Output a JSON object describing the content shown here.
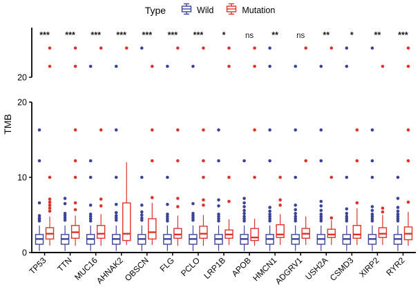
{
  "chart_data": {
    "type": "boxplot",
    "title": "",
    "ylabel": "TMB",
    "legend": {
      "title": "Type",
      "items": [
        {
          "label": "Wild",
          "color": "#3B4397"
        },
        {
          "label": "Mutation",
          "color": "#DD3228"
        }
      ]
    },
    "colors": {
      "wild": "#3B4397",
      "mutation": "#DD3228",
      "axis": "#000000",
      "sig_text": "#1a1a1a"
    },
    "layout": {
      "legend_position": "top",
      "grid": false,
      "broken_y_axis": true
    },
    "panels": {
      "top": {
        "ymin": 20,
        "ymax": 26.8,
        "ticks": [
          20
        ]
      },
      "bottom": {
        "ymin": 0,
        "ymax": 20,
        "ticks": [
          0,
          10,
          20
        ]
      }
    },
    "categories": [
      "TP53",
      "TTN",
      "MUC16",
      "AHNAK2",
      "OBSCN",
      "FLG",
      "PCLO",
      "LRP1B",
      "APOB",
      "HMCN1",
      "ADGRV1",
      "USH2A",
      "CSMD3",
      "XIRP2",
      "RYR2"
    ],
    "significance": [
      "***",
      "***",
      "***",
      "***",
      "***",
      "***",
      "***",
      "*",
      "ns",
      "**",
      "ns",
      "**",
      "*",
      "**",
      "***"
    ],
    "genes": [
      {
        "name": "TP53",
        "sig": "***",
        "wild": {
          "lo": 0.2,
          "q1": 1.1,
          "med": 1.8,
          "q3": 2.4,
          "hi": 3.6,
          "outliers": [
            4.2,
            4.4,
            4.6,
            4.9,
            6.6,
            12.2,
            16.3
          ]
        },
        "mutation": {
          "lo": 0.9,
          "q1": 1.8,
          "med": 2.5,
          "q3": 3.3,
          "hi": 4.8,
          "outliers": [
            5.5,
            5.9,
            6.3,
            6.7,
            7.1,
            10,
            21.5,
            24
          ]
        }
      },
      {
        "name": "TTN",
        "sig": "***",
        "wild": {
          "lo": 0.2,
          "q1": 1.1,
          "med": 1.8,
          "q3": 2.4,
          "hi": 3.6,
          "outliers": [
            4.3,
            4.6,
            4.9,
            5.2,
            6.5,
            7.2
          ]
        },
        "mutation": {
          "lo": 0.9,
          "q1": 1.9,
          "med": 2.7,
          "q3": 3.6,
          "hi": 4.9,
          "outliers": [
            5.7,
            6.6,
            10,
            12.2,
            16.3,
            21.5,
            24
          ]
        }
      },
      {
        "name": "MUC16",
        "sig": "***",
        "wild": {
          "lo": 0.2,
          "q1": 1.1,
          "med": 1.8,
          "q3": 2.4,
          "hi": 3.6,
          "outliers": [
            4.2,
            4.5,
            4.8,
            5.1,
            6.3,
            10,
            12.2,
            21.5
          ]
        },
        "mutation": {
          "lo": 0.9,
          "q1": 1.9,
          "med": 2.5,
          "q3": 3.6,
          "hi": 5.1,
          "outliers": [
            6.2,
            7.1,
            16.3,
            24
          ]
        }
      },
      {
        "name": "AHNAK2",
        "sig": "***",
        "wild": {
          "lo": 0.2,
          "q1": 1.1,
          "med": 1.8,
          "q3": 2.4,
          "hi": 3.6,
          "outliers": [
            4.3,
            4.6,
            4.9,
            5.3,
            6.4,
            10,
            16.3,
            21.5
          ]
        },
        "mutation": {
          "lo": 1.0,
          "q1": 1.6,
          "med": 2.5,
          "q3": 6.6,
          "hi": 12,
          "outliers": [
            24
          ]
        }
      },
      {
        "name": "OBSCN",
        "sig": "***",
        "wild": {
          "lo": 0.2,
          "q1": 1.1,
          "med": 1.8,
          "q3": 2.4,
          "hi": 3.6,
          "outliers": [
            4.3,
            4.6,
            5.0,
            5.4,
            6.3,
            10,
            24
          ]
        },
        "mutation": {
          "lo": 1.0,
          "q1": 1.8,
          "med": 2.7,
          "q3": 4.5,
          "hi": 6.6,
          "outliers": [
            7.3,
            12.2,
            16.3,
            21.5
          ]
        }
      },
      {
        "name": "FLG",
        "sig": "***",
        "wild": {
          "lo": 0.2,
          "q1": 1.1,
          "med": 1.8,
          "q3": 2.4,
          "hi": 3.6,
          "outliers": [
            4.2,
            4.5,
            4.8,
            5.1,
            6.4,
            10,
            21.5
          ]
        },
        "mutation": {
          "lo": 0.9,
          "q1": 1.9,
          "med": 2.4,
          "q3": 3.2,
          "hi": 4.9,
          "outliers": [
            6.1,
            7.2,
            12.2,
            16.3,
            24
          ]
        }
      },
      {
        "name": "PCLO",
        "sig": "***",
        "wild": {
          "lo": 0.2,
          "q1": 1.1,
          "med": 1.8,
          "q3": 2.4,
          "hi": 3.6,
          "outliers": [
            4.3,
            4.6,
            4.9,
            5.2,
            6.5,
            21.5
          ]
        },
        "mutation": {
          "lo": 0.9,
          "q1": 1.9,
          "med": 2.5,
          "q3": 3.5,
          "hi": 5.0,
          "outliers": [
            6.3,
            7.0,
            10,
            12.2,
            16.3,
            24
          ]
        }
      },
      {
        "name": "LRP1B",
        "sig": "*",
        "wild": {
          "lo": 0.2,
          "q1": 1.1,
          "med": 1.8,
          "q3": 2.4,
          "hi": 3.6,
          "outliers": [
            4.2,
            4.5,
            4.8,
            5.1,
            6.2,
            7.0,
            12.2,
            16.3
          ]
        },
        "mutation": {
          "lo": 1.0,
          "q1": 1.9,
          "med": 2.4,
          "q3": 3.0,
          "hi": 4.4,
          "outliers": [
            6.8,
            10,
            21.5,
            24
          ]
        }
      },
      {
        "name": "APOB",
        "sig": "ns",
        "wild": {
          "lo": 0.2,
          "q1": 1.1,
          "med": 1.8,
          "q3": 2.4,
          "hi": 3.6,
          "outliers": [
            4.2,
            4.5,
            4.8,
            5.2,
            5.6,
            6.1,
            6.6,
            7.2,
            12.2
          ]
        },
        "mutation": {
          "lo": 0.9,
          "q1": 1.6,
          "med": 2.0,
          "q3": 3.2,
          "hi": 4.5,
          "outliers": [
            10,
            16.3,
            21.5,
            24
          ]
        }
      },
      {
        "name": "HMCN1",
        "sig": "**",
        "wild": {
          "lo": 0.2,
          "q1": 1.1,
          "med": 1.8,
          "q3": 2.4,
          "hi": 3.6,
          "outliers": [
            4.2,
            4.5,
            4.8,
            5.1,
            5.5,
            6.0,
            12.2,
            16.3,
            21.5,
            24
          ]
        },
        "mutation": {
          "lo": 1.0,
          "q1": 2.0,
          "med": 2.4,
          "q3": 3.7,
          "hi": 5.1,
          "outliers": [
            6.3,
            7.0,
            10
          ]
        }
      },
      {
        "name": "ADGRV1",
        "sig": "ns",
        "wild": {
          "lo": 0.2,
          "q1": 1.1,
          "med": 1.8,
          "q3": 2.4,
          "hi": 3.6,
          "outliers": [
            4.2,
            4.5,
            4.8,
            5.2,
            5.7,
            6.3,
            10,
            16.3,
            21.5
          ]
        },
        "mutation": {
          "lo": 1.0,
          "q1": 1.9,
          "med": 2.5,
          "q3": 3.2,
          "hi": 4.8,
          "outliers": [
            12.2,
            24
          ]
        }
      },
      {
        "name": "USH2A",
        "sig": "**",
        "wild": {
          "lo": 0.2,
          "q1": 1.1,
          "med": 1.8,
          "q3": 2.4,
          "hi": 3.6,
          "outliers": [
            4.2,
            4.5,
            4.8,
            5.1,
            5.6,
            6.2,
            6.8,
            12.2,
            16.3,
            21.5
          ]
        },
        "mutation": {
          "lo": 1.0,
          "q1": 2.0,
          "med": 2.4,
          "q3": 3.1,
          "hi": 4.3,
          "outliers": [
            4.6,
            10,
            24
          ]
        }
      },
      {
        "name": "CSMD3",
        "sig": "*",
        "wild": {
          "lo": 0.2,
          "q1": 1.1,
          "med": 1.8,
          "q3": 2.4,
          "hi": 3.6,
          "outliers": [
            4.2,
            4.5,
            4.8,
            5.2,
            5.8,
            10,
            21.5,
            24
          ]
        },
        "mutation": {
          "lo": 1.0,
          "q1": 1.9,
          "med": 2.4,
          "q3": 3.6,
          "hi": 5.9,
          "outliers": [
            6.6,
            12.2,
            16.3
          ]
        }
      },
      {
        "name": "XIRP2",
        "sig": "**",
        "wild": {
          "lo": 0.2,
          "q1": 1.1,
          "med": 1.8,
          "q3": 2.4,
          "hi": 3.6,
          "outliers": [
            4.2,
            4.5,
            4.8,
            5.1,
            5.6,
            6.1,
            10,
            12.2,
            16.3,
            24
          ]
        },
        "mutation": {
          "lo": 1.0,
          "q1": 2.0,
          "med": 2.5,
          "q3": 3.3,
          "hi": 5.0,
          "outliers": [
            5.4,
            5.9,
            21.5
          ]
        }
      },
      {
        "name": "RYR2",
        "sig": "***",
        "wild": {
          "lo": 0.2,
          "q1": 1.1,
          "med": 1.8,
          "q3": 2.4,
          "hi": 3.6,
          "outliers": [
            4.2,
            4.5,
            4.8,
            5.1,
            5.5,
            6.0,
            7.2,
            10
          ]
        },
        "mutation": {
          "lo": 0.9,
          "q1": 1.7,
          "med": 2.5,
          "q3": 3.4,
          "hi": 5.4,
          "outliers": [
            6.7,
            12.2,
            16.3,
            21.5,
            24
          ]
        }
      }
    ]
  }
}
